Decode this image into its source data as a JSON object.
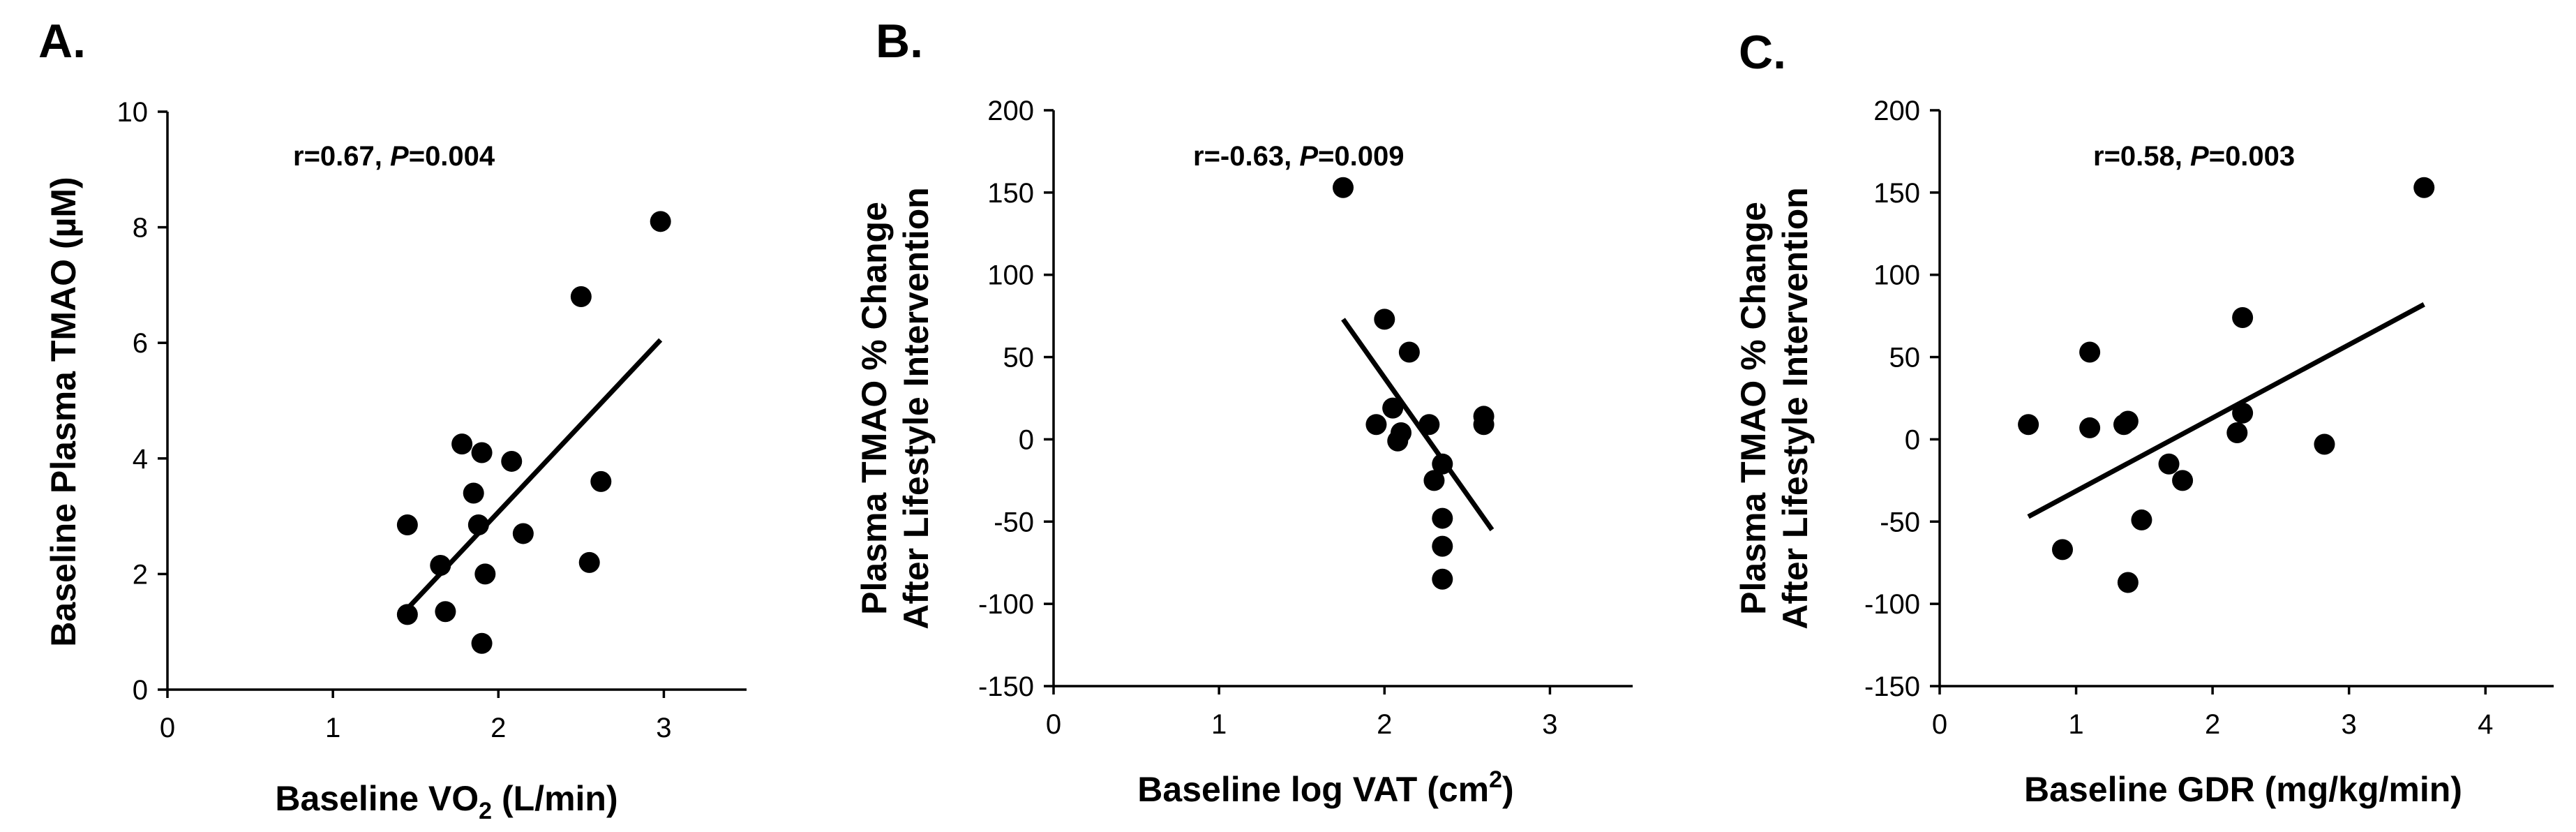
{
  "chart_data": [
    {
      "type": "scatter",
      "panel": "A.",
      "xlabel": {
        "main": "Baseline VO",
        "sub": "2",
        "rest": " (L/min)"
      },
      "ylabel": "Baseline Plasma TMAO (µM)",
      "annotation": {
        "r": "r=0.67, ",
        "p_label": "P",
        "p_value": "=0.004"
      },
      "xlim": [
        0,
        3.5
      ],
      "ylim": [
        0,
        10
      ],
      "xticks": [
        0,
        1,
        2,
        3
      ],
      "yticks": [
        0,
        2,
        4,
        6,
        8,
        10
      ],
      "points": [
        {
          "x": 1.45,
          "y": 2.85
        },
        {
          "x": 1.45,
          "y": 1.3
        },
        {
          "x": 1.65,
          "y": 2.15
        },
        {
          "x": 1.68,
          "y": 1.35
        },
        {
          "x": 1.78,
          "y": 4.25
        },
        {
          "x": 1.85,
          "y": 3.4
        },
        {
          "x": 1.88,
          "y": 2.85
        },
        {
          "x": 1.9,
          "y": 4.1
        },
        {
          "x": 1.9,
          "y": 0.8
        },
        {
          "x": 1.92,
          "y": 2.0
        },
        {
          "x": 2.08,
          "y": 3.95
        },
        {
          "x": 2.15,
          "y": 2.7
        },
        {
          "x": 2.5,
          "y": 6.8
        },
        {
          "x": 2.55,
          "y": 2.2
        },
        {
          "x": 2.62,
          "y": 3.6
        },
        {
          "x": 2.98,
          "y": 8.1
        }
      ],
      "trendline": {
        "x": [
          1.45,
          2.98
        ],
        "y": [
          1.4,
          6.05
        ]
      }
    },
    {
      "type": "scatter",
      "panel": "B.",
      "xlabel": {
        "main": "Baseline log VAT (cm",
        "sup": "2",
        "rest": ")"
      },
      "ylabel": [
        "Plasma TMAO % Change",
        "After Lifestyle Intervention"
      ],
      "annotation": {
        "r": "r=-0.63, ",
        "p_label": "P",
        "p_value": "=0.009"
      },
      "xlim": [
        0,
        3.5
      ],
      "ylim": [
        -150,
        200
      ],
      "xticks": [
        0,
        1,
        2,
        3
      ],
      "yticks": [
        -150,
        -100,
        -50,
        0,
        50,
        100,
        150,
        200
      ],
      "points": [
        {
          "x": 1.75,
          "y": 153
        },
        {
          "x": 1.95,
          "y": 9
        },
        {
          "x": 2.0,
          "y": 73
        },
        {
          "x": 2.05,
          "y": 19
        },
        {
          "x": 2.08,
          "y": -1
        },
        {
          "x": 2.1,
          "y": 4
        },
        {
          "x": 2.15,
          "y": 53
        },
        {
          "x": 2.27,
          "y": 9
        },
        {
          "x": 2.3,
          "y": -25
        },
        {
          "x": 2.35,
          "y": -15
        },
        {
          "x": 2.35,
          "y": -48
        },
        {
          "x": 2.35,
          "y": -65
        },
        {
          "x": 2.35,
          "y": -85
        },
        {
          "x": 2.6,
          "y": 14
        },
        {
          "x": 2.6,
          "y": 9
        }
      ],
      "trendline": {
        "x": [
          1.75,
          2.65
        ],
        "y": [
          73,
          -55
        ]
      }
    },
    {
      "type": "scatter",
      "panel": "C.",
      "xlabel": {
        "main": "Baseline GDR (mg/kg/min)"
      },
      "ylabel": [
        "Plasma TMAO % Change",
        "After Lifestyle Intervention"
      ],
      "annotation": {
        "r": "r=0.58, ",
        "p_label": "P",
        "p_value": "=0.003"
      },
      "xlim": [
        0,
        4.5
      ],
      "ylim": [
        -150,
        200
      ],
      "xticks": [
        0,
        1,
        2,
        3,
        4
      ],
      "yticks": [
        -150,
        -100,
        -50,
        0,
        50,
        100,
        150,
        200
      ],
      "points": [
        {
          "x": 0.65,
          "y": 9
        },
        {
          "x": 0.9,
          "y": -67
        },
        {
          "x": 1.1,
          "y": 7
        },
        {
          "x": 1.1,
          "y": 53
        },
        {
          "x": 1.35,
          "y": 9
        },
        {
          "x": 1.38,
          "y": 11
        },
        {
          "x": 1.38,
          "y": -87
        },
        {
          "x": 1.48,
          "y": -49
        },
        {
          "x": 1.68,
          "y": -15
        },
        {
          "x": 1.78,
          "y": -25
        },
        {
          "x": 2.18,
          "y": 4
        },
        {
          "x": 2.22,
          "y": 74
        },
        {
          "x": 2.22,
          "y": 16
        },
        {
          "x": 2.82,
          "y": -3
        },
        {
          "x": 3.55,
          "y": 153
        }
      ],
      "trendline": {
        "x": [
          0.65,
          3.55
        ],
        "y": [
          -47,
          82
        ]
      }
    }
  ]
}
